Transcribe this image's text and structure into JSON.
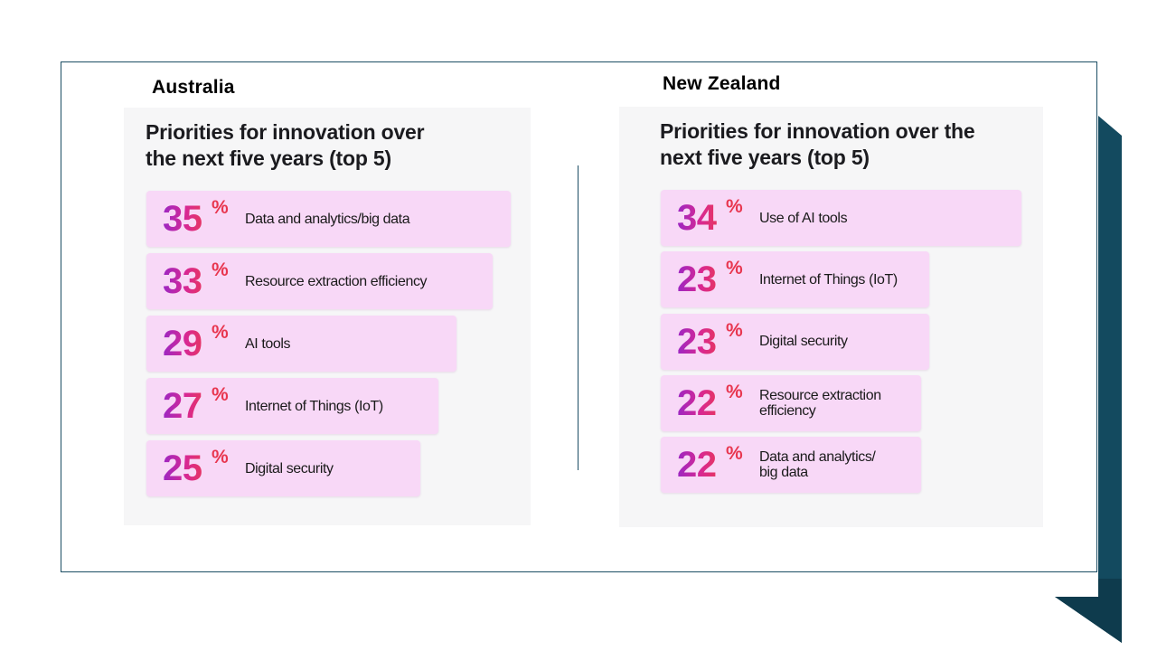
{
  "slide": {
    "colors": {
      "frame": "#1c4e64",
      "accent_shape": "#134a5f",
      "bar_fill": "#f8d8f7",
      "percent_gradient": [
        "#9b27c4",
        "#d82892",
        "#e63562"
      ]
    }
  },
  "australia": {
    "country_label": "Australia",
    "panel_title_line1": "Priorities for innovation over",
    "panel_title_line2": "the next five years (top 5)"
  },
  "new_zealand": {
    "country_label": "New Zealand",
    "panel_title_line1": "Priorities for innovation over the",
    "panel_title_line2": "next five years (top 5)"
  },
  "chart_data": [
    {
      "type": "bar",
      "orientation": "horizontal",
      "title": "Priorities for innovation over the next five years (top 5)",
      "region": "Australia",
      "unit": "%",
      "categories": [
        "Data and analytics/big data",
        "Resource extraction efficiency",
        "AI tools",
        "Internet of Things (IoT)",
        "Digital security"
      ],
      "values": [
        35,
        33,
        29,
        27,
        25
      ]
    },
    {
      "type": "bar",
      "orientation": "horizontal",
      "title": "Priorities for innovation over the next five years (top 5)",
      "region": "New Zealand",
      "unit": "%",
      "categories": [
        "Use of AI tools",
        "Internet of Things (IoT)",
        "Digital security",
        "Resource extraction efficiency",
        "Data and analytics/ big data"
      ],
      "values": [
        34,
        23,
        23,
        22,
        22
      ]
    }
  ]
}
